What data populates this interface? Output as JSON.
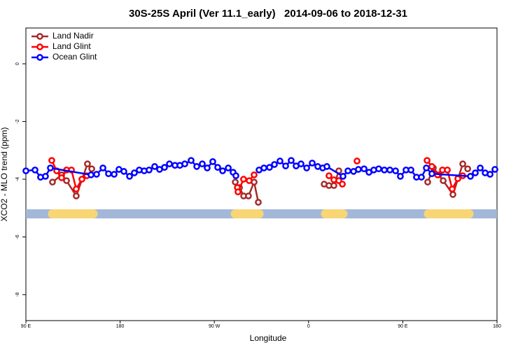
{
  "chart_data": {
    "type": "line",
    "title": "30S-25S April (Ver 11.1_early)   2014-09-06 to 2018-12-31",
    "x_label": "Longitude",
    "y_label": "XCO2 - MLO trend (ppm)",
    "xlim": [
      90,
      540
    ],
    "ylim": [
      -8.9,
      1.24
    ],
    "xticks": [
      {
        "value": 90,
        "label": "90 E"
      },
      180,
      {
        "value": 270,
        "label": "90 W"
      },
      {
        "value": 360,
        "label": "0"
      },
      {
        "value": 450,
        "label": "90 E"
      },
      {
        "value": 540,
        "label": "180"
      }
    ],
    "yticks": [
      0,
      -2,
      -4,
      -6,
      -8
    ],
    "legend": "top-left",
    "surface_band": {
      "y": -5.2,
      "ocean_color": "#a3b8d8",
      "land_color": "#f8d676",
      "land": [
        [
          115.4,
          154.2
        ],
        [
          290,
          312.7
        ],
        [
          376.2,
          392.9
        ],
        [
          474.5,
          513.3
        ]
      ]
    },
    "series": [
      {
        "name": "Land Nadir",
        "color": "#a52a2a",
        "x": [
          115.4,
          124.1,
          128.8,
          138.1,
          148.8,
          152.9,
          null,
          290,
          294,
          298,
          302.6,
          308,
          312,
          null,
          374.9,
          379.5,
          384.2,
          388.9,
          null,
          473.8,
          479.2,
          484.5,
          488.6,
          497.9,
          507.3,
          512
        ],
        "values": [
          -4.1,
          -3.85,
          -4.05,
          -4.58,
          -3.47,
          -3.64,
          null,
          -4.1,
          -4.29,
          -4.58,
          -4.58,
          -4.1,
          -4.8,
          null,
          -4.17,
          -4.22,
          -4.22,
          -3.71,
          null,
          -4.1,
          -3.61,
          -3.85,
          -4.05,
          -4.53,
          -3.47,
          -3.64
        ]
      },
      {
        "name": "Land Glint",
        "color": "#ff0000",
        "x": [
          114.7,
          119.4,
          124.1,
          128.8,
          133.5,
          138.1,
          143.5,
          148.2,
          null,
          292,
          292.6,
          297.9,
          303.3,
          308,
          null,
          379.5,
          384.2,
          388.9,
          392.3,
          null,
          406.3,
          null,
          473.2,
          477.8,
          483.2,
          487.9,
          492.6,
          497.2,
          502.6,
          507.3
        ],
        "values": [
          -3.35,
          -3.71,
          -3.95,
          -3.68,
          -3.68,
          -4.34,
          -4.0,
          -3.88,
          null,
          -4.29,
          -4.44,
          -4.0,
          -4.05,
          -3.85,
          null,
          -3.88,
          -4.02,
          -4.05,
          -4.17,
          null,
          -3.37,
          null,
          -3.35,
          -3.56,
          -3.85,
          -3.68,
          -3.68,
          -4.34,
          -3.98,
          -3.88
        ]
      },
      {
        "name": "Ocean Glint",
        "color": "#0000ff",
        "x": [
          90,
          98.7,
          104,
          108.7,
          113.4,
          152.2,
          157.5,
          163.6,
          168.9,
          174.3,
          178.9,
          183.6,
          189,
          193.6,
          198.3,
          203,
          207.7,
          213,
          217.7,
          222.4,
          227.1,
          232.4,
          237.1,
          241.8,
          247.8,
          253.2,
          258.5,
          263.2,
          268.5,
          273.2,
          277.9,
          283.3,
          287.9,
          290.6,
          null,
          312.7,
          317.4,
          322.7,
          327.4,
          332.7,
          338.1,
          343.4,
          348.1,
          352.8,
          358.2,
          363.5,
          368.8,
          373.5,
          377.5,
          392.9,
          397.6,
          403,
          407.6,
          413,
          417.7,
          422.3,
          427,
          432.4,
          437.7,
          443.1,
          447.7,
          453.1,
          457.8,
          463.1,
          467.8,
          472.5,
          477.8,
          514.6,
          519.3,
          524,
          528.7,
          533.4,
          538
        ],
        "values": [
          -3.71,
          -3.68,
          -3.93,
          -3.9,
          -3.61,
          -3.85,
          -3.83,
          -3.61,
          -3.81,
          -3.83,
          -3.66,
          -3.73,
          -3.9,
          -3.78,
          -3.68,
          -3.71,
          -3.68,
          -3.56,
          -3.66,
          -3.59,
          -3.47,
          -3.52,
          -3.52,
          -3.47,
          -3.35,
          -3.56,
          -3.47,
          -3.61,
          -3.39,
          -3.59,
          -3.71,
          -3.61,
          -3.76,
          -3.88,
          null,
          -3.68,
          -3.61,
          -3.59,
          -3.49,
          -3.37,
          -3.54,
          -3.35,
          -3.54,
          -3.47,
          -3.61,
          -3.44,
          -3.56,
          -3.61,
          -3.56,
          -3.9,
          -3.71,
          -3.73,
          -3.66,
          -3.64,
          -3.76,
          -3.68,
          -3.64,
          -3.68,
          -3.68,
          -3.71,
          -3.9,
          -3.68,
          -3.68,
          -3.93,
          -3.93,
          -3.61,
          -3.81,
          -3.9,
          -3.78,
          -3.61,
          -3.78,
          -3.83,
          -3.66
        ]
      }
    ]
  }
}
